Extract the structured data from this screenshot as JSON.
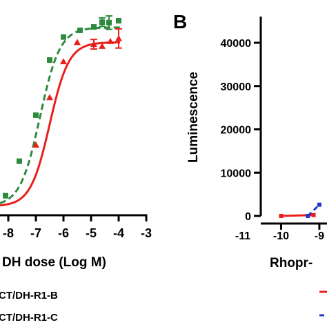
{
  "chart_data": [
    {
      "type": "scatter",
      "panel_label": "",
      "xlabel": "DH dose (Log M)",
      "ylabel": "",
      "xlim": [
        -8.3,
        -3
      ],
      "ylim": [
        0,
        40000
      ],
      "xticks": [
        "-8",
        "-7",
        "-6",
        "-5",
        "-4",
        "-3"
      ],
      "xtick_values": [
        -8,
        -7,
        -6,
        -5,
        -4,
        -3
      ],
      "grid": false,
      "legend_position": "bottom-left",
      "series": [
        {
          "name": "CT/DH-R1-B",
          "color": "#2e8b3e",
          "marker": "square",
          "line_style": "dashed",
          "points": [
            {
              "x": -8.1,
              "y": 2200
            },
            {
              "x": -7.6,
              "y": 9400
            },
            {
              "x": -7.0,
              "y": 19000
            },
            {
              "x": -6.5,
              "y": 30500
            },
            {
              "x": -6.0,
              "y": 35300
            },
            {
              "x": -5.4,
              "y": 36700
            },
            {
              "x": -4.9,
              "y": 37400
            },
            {
              "x": -4.6,
              "y": 38400,
              "err": 900
            },
            {
              "x": -4.35,
              "y": 38300,
              "err": 1400
            },
            {
              "x": -4.0,
              "y": 38700
            }
          ],
          "fit": {
            "bottom": 0,
            "top": 37300,
            "logEC50": -6.85,
            "hill": 1.2
          }
        },
        {
          "name": "CT/DH-R1-C",
          "color": "#e8201d",
          "marker": "triangle",
          "line_style": "solid",
          "points": [
            {
              "x": -7.0,
              "y": 12800
            },
            {
              "x": -6.5,
              "y": 22700
            },
            {
              "x": -6.0,
              "y": 30200
            },
            {
              "x": -5.5,
              "y": 34200
            },
            {
              "x": -4.9,
              "y": 33800,
              "err": 1000
            },
            {
              "x": -4.6,
              "y": 33400
            },
            {
              "x": -4.3,
              "y": 34400
            },
            {
              "x": -4.0,
              "y": 35000,
              "err": 2000
            }
          ],
          "fit": {
            "bottom": 0,
            "top": 34200,
            "logEC50": -6.5,
            "hill": 1.25
          }
        }
      ]
    },
    {
      "type": "line",
      "panel_label": "B",
      "xlabel": "Rhopr-",
      "ylabel": "Luminescence",
      "xlim": [
        -11,
        -8.8
      ],
      "ylim": [
        0,
        45000
      ],
      "xticks": [
        "-11",
        "-10",
        "-9"
      ],
      "xtick_values": [
        -11,
        -10,
        -9
      ],
      "yticks": [
        "0",
        "10000",
        "20000",
        "30000",
        "40000"
      ],
      "ytick_values": [
        0,
        10000,
        20000,
        30000,
        40000
      ],
      "grid": false,
      "series": [
        {
          "color": "#e8201d",
          "line_style": "solid",
          "points": [
            {
              "x": -10.0,
              "y": 0
            },
            {
              "x": -9.15,
              "y": 200
            }
          ]
        },
        {
          "color": "#2535c4",
          "line_style": "dashed",
          "points": [
            {
              "x": -9.3,
              "y": 0
            },
            {
              "x": -9.0,
              "y": 2600
            }
          ]
        }
      ]
    }
  ]
}
